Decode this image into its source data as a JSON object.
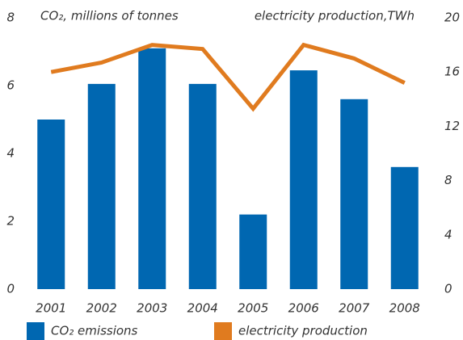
{
  "chart_data": {
    "type": "bar_line",
    "y_label": "CO₂, millions of tonnes",
    "y2_label": "electricity production,TWh",
    "categories": [
      "2001",
      "2002",
      "2003",
      "2004",
      "2005",
      "2006",
      "2007",
      "2008"
    ],
    "series": [
      {
        "name": "CO₂ emissions",
        "type": "bar",
        "color": "#0067b1",
        "values": [
          5.0,
          6.05,
          7.1,
          6.05,
          2.2,
          6.45,
          5.6,
          3.6
        ]
      },
      {
        "name": "electricity production",
        "type": "line",
        "axis": "y2",
        "color": "#e07b1f",
        "values": [
          16.0,
          16.7,
          18.0,
          17.7,
          13.3,
          18.0,
          17.0,
          15.2
        ]
      }
    ],
    "ylim": [
      0,
      8
    ],
    "yticks": [
      0,
      2,
      4,
      6,
      8
    ],
    "y2lim": [
      0,
      20
    ],
    "y2ticks": [
      0,
      4,
      8,
      12,
      16,
      20
    ],
    "grid": false
  }
}
